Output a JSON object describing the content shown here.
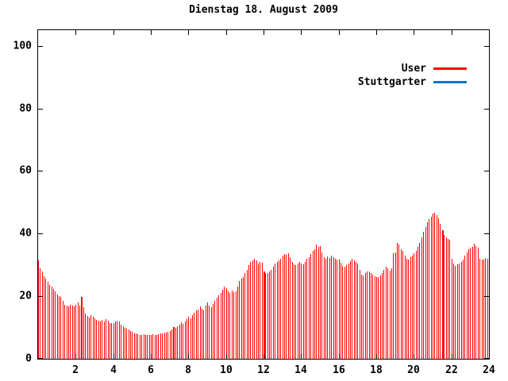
{
  "title": "Dienstag 18. August 2009",
  "legend": {
    "entries": [
      {
        "label": "User",
        "color": "#ff0000"
      },
      {
        "label": "Stuttgarter",
        "color": "#0f74d4"
      }
    ]
  },
  "chart_data": {
    "type": "bar",
    "title": "Dienstag 18. August 2009",
    "xlabel": "",
    "ylabel": "",
    "xlim": [
      0,
      24
    ],
    "ylim": [
      0,
      105
    ],
    "x_ticks": [
      2,
      4,
      6,
      8,
      10,
      12,
      14,
      16,
      18,
      20,
      22,
      24
    ],
    "y_ticks": [
      0,
      20,
      40,
      60,
      80,
      100
    ],
    "grid": false,
    "legend_position": "top-right",
    "interval_minutes": 6,
    "wide_bar_indices": [
      23,
      72,
      120,
      215
    ],
    "series": [
      {
        "name": "User",
        "color": "#ff0000",
        "values": [
          31.5,
          29,
          28,
          26.5,
          25.5,
          24.5,
          23.5,
          23,
          22.3,
          21.5,
          20.5,
          20,
          19.8,
          18.5,
          17.2,
          17,
          16.8,
          17.3,
          17,
          16.8,
          17.2,
          18,
          17,
          19.7,
          16.5,
          14.5,
          13.8,
          13.2,
          14,
          13.5,
          13,
          12.5,
          12.2,
          12,
          12.5,
          11.8,
          12.8,
          12.2,
          11.5,
          11.4,
          11.5,
          11.8,
          12.3,
          12,
          10.8,
          10.4,
          10,
          9.6,
          9.3,
          9,
          8.5,
          8.2,
          8,
          7.8,
          7.6,
          7.6,
          7.8,
          7.5,
          7.7,
          7.6,
          7.6,
          7.8,
          7.5,
          7.7,
          7.9,
          8,
          8.2,
          8.4,
          8.3,
          8.6,
          8.8,
          9.5,
          10.2,
          9.8,
          10.5,
          11,
          11.6,
          11.2,
          12,
          12.6,
          13.4,
          13,
          14,
          14.8,
          15.4,
          15.8,
          16.7,
          16,
          15.4,
          17,
          18,
          17,
          16.5,
          17.5,
          18.5,
          19.5,
          20.3,
          21,
          22,
          23,
          22.5,
          21.5,
          21,
          21.8,
          21.3,
          21.5,
          23,
          24.8,
          25.5,
          26.1,
          27.3,
          28.5,
          30,
          31,
          31.5,
          32,
          31.5,
          30.5,
          31,
          30.8,
          28,
          27.5,
          27.3,
          28,
          28.5,
          29.5,
          30.5,
          31,
          31.5,
          32,
          33,
          33.5,
          33.2,
          33.7,
          32.5,
          31,
          30.2,
          30,
          30.5,
          31,
          30.5,
          30.2,
          31,
          32,
          32.5,
          33.5,
          34.5,
          35,
          36.4,
          35.8,
          36,
          34,
          32.4,
          32,
          32.8,
          32.2,
          33,
          32.5,
          32,
          31.6,
          31.6,
          30.8,
          29.8,
          29.4,
          30,
          30.4,
          31.2,
          32,
          31.5,
          31,
          30.5,
          28.5,
          27,
          26.6,
          27.3,
          27.8,
          28,
          27.5,
          27,
          26.5,
          26.2,
          26,
          26.6,
          27.5,
          28.5,
          29.4,
          28.8,
          28.2,
          29,
          33.7,
          34,
          37,
          36.5,
          35,
          34.5,
          33,
          32,
          31.6,
          32.4,
          33,
          33.7,
          34.5,
          35.7,
          37,
          38.7,
          40.5,
          42,
          43.5,
          44.6,
          45.5,
          46.3,
          46.6,
          45.8,
          45,
          43,
          41,
          39.5,
          38.7,
          38.2,
          38,
          32,
          30.5,
          29.8,
          30.2,
          30.5,
          31,
          31.6,
          33,
          34,
          35,
          35.5,
          35.7,
          36.7,
          36,
          35.5,
          32,
          31.6,
          31.8,
          32.3,
          32
        ]
      },
      {
        "name": "Stuttgarter",
        "color": "#0f74d4",
        "values": []
      }
    ]
  }
}
